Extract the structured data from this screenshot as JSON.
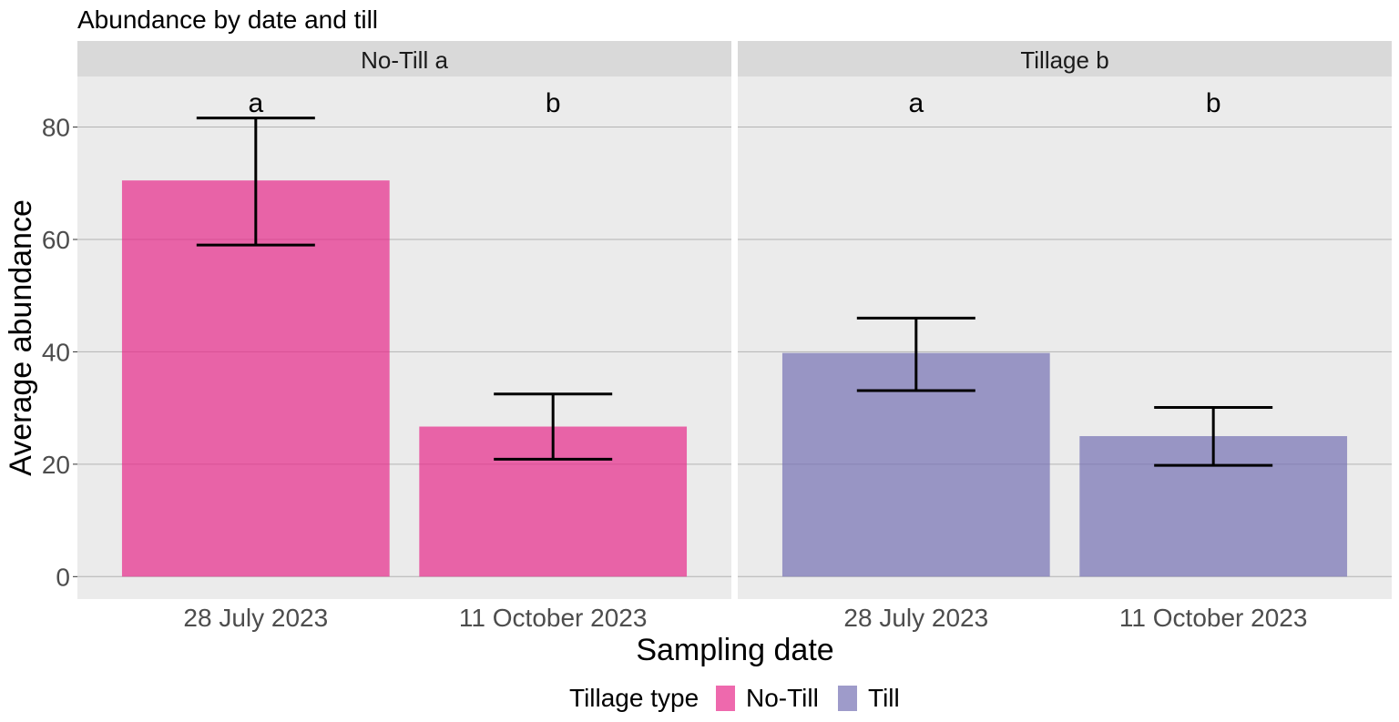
{
  "chart_data": {
    "type": "bar",
    "title": "Abundance by date and till",
    "xlabel": "Sampling date",
    "ylabel": "Average abundance",
    "ylim": [
      -4,
      89
    ],
    "yticks": [
      0,
      20,
      40,
      60,
      80
    ],
    "ytick_labels": [
      "0",
      "20",
      "40",
      "60",
      "80"
    ],
    "grid": true,
    "legend": {
      "title": "Tillage type",
      "placement": "bottom",
      "entries": [
        {
          "name": "No-Till",
          "color": "#E7298A"
        },
        {
          "name": "Till",
          "color": "#7570B3"
        }
      ]
    },
    "panels": [
      {
        "strip": "No-Till a",
        "series": "No-Till",
        "color": "#E7298A",
        "categories": [
          "28 July 2023",
          "11 October 2023"
        ],
        "values": [
          70.5,
          26.7
        ],
        "error_low": [
          59.0,
          20.9
        ],
        "error_high": [
          81.6,
          32.5
        ],
        "letters": [
          "a",
          "b"
        ]
      },
      {
        "strip": "Tillage b",
        "series": "Till",
        "color": "#7570B3",
        "categories": [
          "28 July 2023",
          "11 October 2023"
        ],
        "values": [
          39.8,
          25.0
        ],
        "error_low": [
          33.1,
          19.8
        ],
        "error_high": [
          46.0,
          30.1
        ],
        "letters": [
          "a",
          "b"
        ]
      }
    ],
    "letter_y": 84.5,
    "colors": {
      "panel_bg": "#EBEBEB",
      "strip_bg": "#D9D9D9",
      "grid": "#B3B3B3",
      "tick_text": "#4D4D4D"
    }
  }
}
